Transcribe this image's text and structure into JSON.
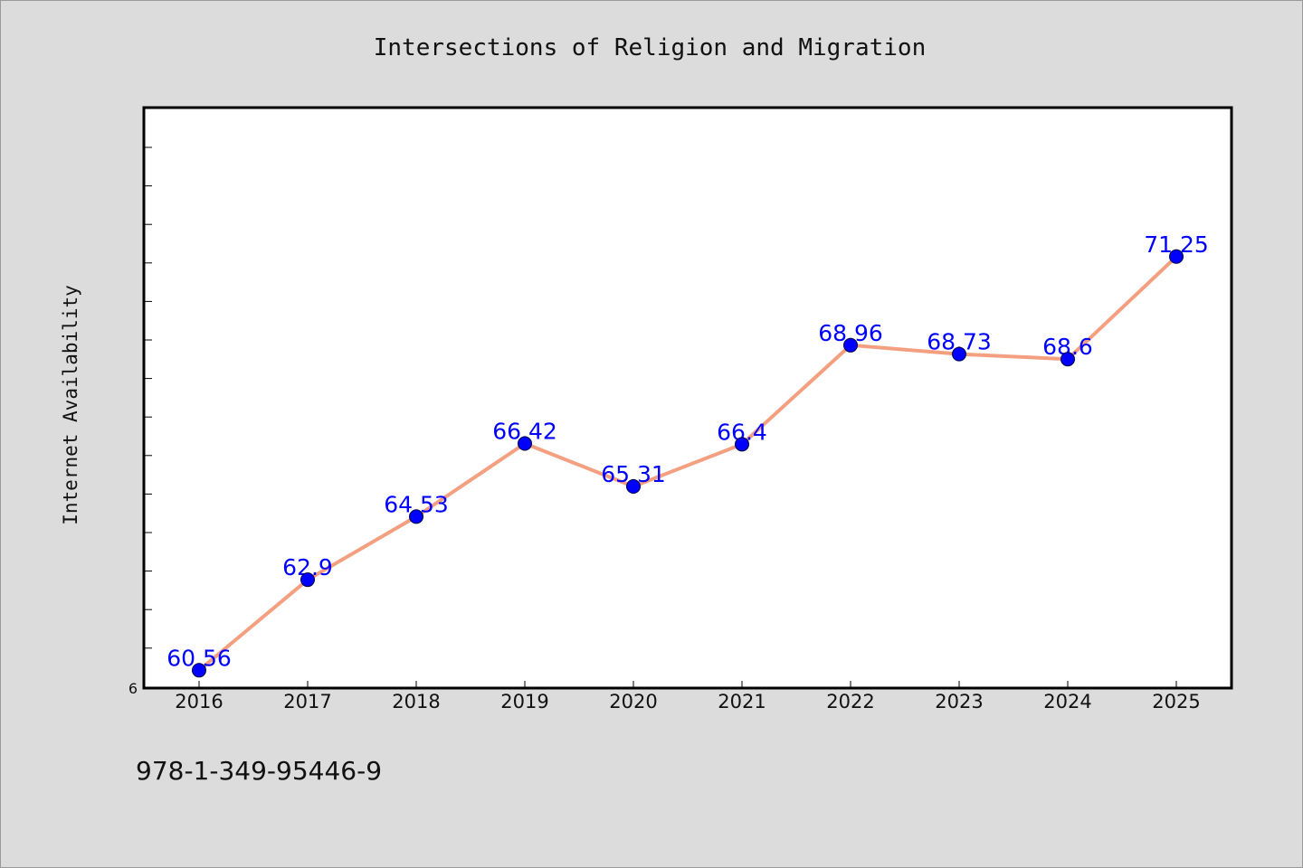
{
  "chart_data": {
    "type": "line",
    "title": "Intersections of Religion and Migration",
    "xlabel": "",
    "ylabel": "Internet Availability",
    "categories": [
      "2016",
      "2017",
      "2018",
      "2019",
      "2020",
      "2021",
      "2022",
      "2023",
      "2024",
      "2025"
    ],
    "series": [
      {
        "values": [
          60.56,
          62.9,
          64.53,
          66.42,
          65.31,
          66.4,
          68.96,
          68.73,
          68.6,
          71.25
        ],
        "labels": [
          "60.56",
          "62.9",
          "64.53",
          "66.42",
          "65.31",
          "66.4",
          "68.96",
          "68.73",
          "68.6",
          "71.25"
        ]
      }
    ],
    "ylim": [
      60.1,
      75.1
    ],
    "ytick_labels": [
      "6"
    ],
    "grid": false,
    "line_color": "#f4a080",
    "marker_color": "#0000ff",
    "label_color": "#0000ff"
  },
  "footer": {
    "isbn": "978-1-349-95446-9"
  }
}
